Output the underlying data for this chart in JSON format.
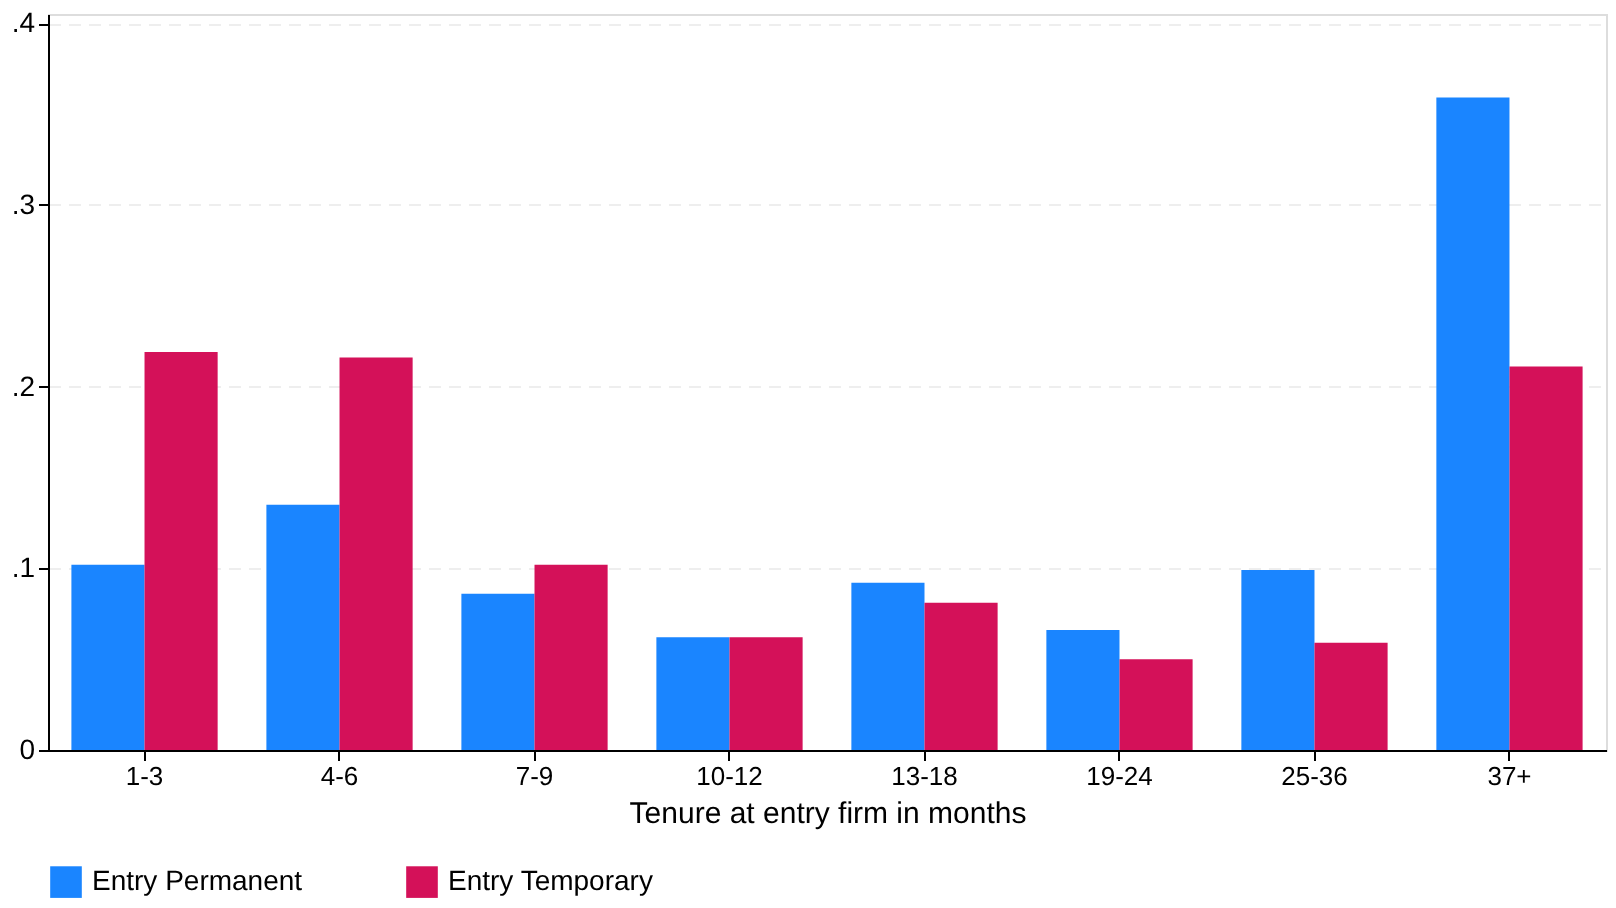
{
  "chart_data": {
    "type": "bar",
    "xlabel": "Tenure at entry firm in months",
    "categories": [
      "1-3",
      "4-6",
      "7-9",
      "10-12",
      "13-18",
      "19-24",
      "25-36",
      "37+"
    ],
    "series": [
      {
        "name": "Entry Permanent",
        "color": "#1a85ff",
        "values": [
          0.102,
          0.135,
          0.086,
          0.062,
          0.092,
          0.066,
          0.099,
          0.359
        ]
      },
      {
        "name": "Entry Temporary",
        "color": "#d41159",
        "values": [
          0.219,
          0.216,
          0.102,
          0.062,
          0.081,
          0.05,
          0.059,
          0.211
        ]
      }
    ],
    "ylim": [
      0,
      0.405
    ],
    "yticks": [
      0,
      {
        "value": 0.1,
        "label": ".1"
      },
      {
        "value": 0.2,
        "label": ".2"
      },
      {
        "value": 0.3,
        "label": ".3"
      },
      {
        "value": 0.4,
        "label": ".4"
      }
    ],
    "grid": "y",
    "legend": "bottom"
  }
}
